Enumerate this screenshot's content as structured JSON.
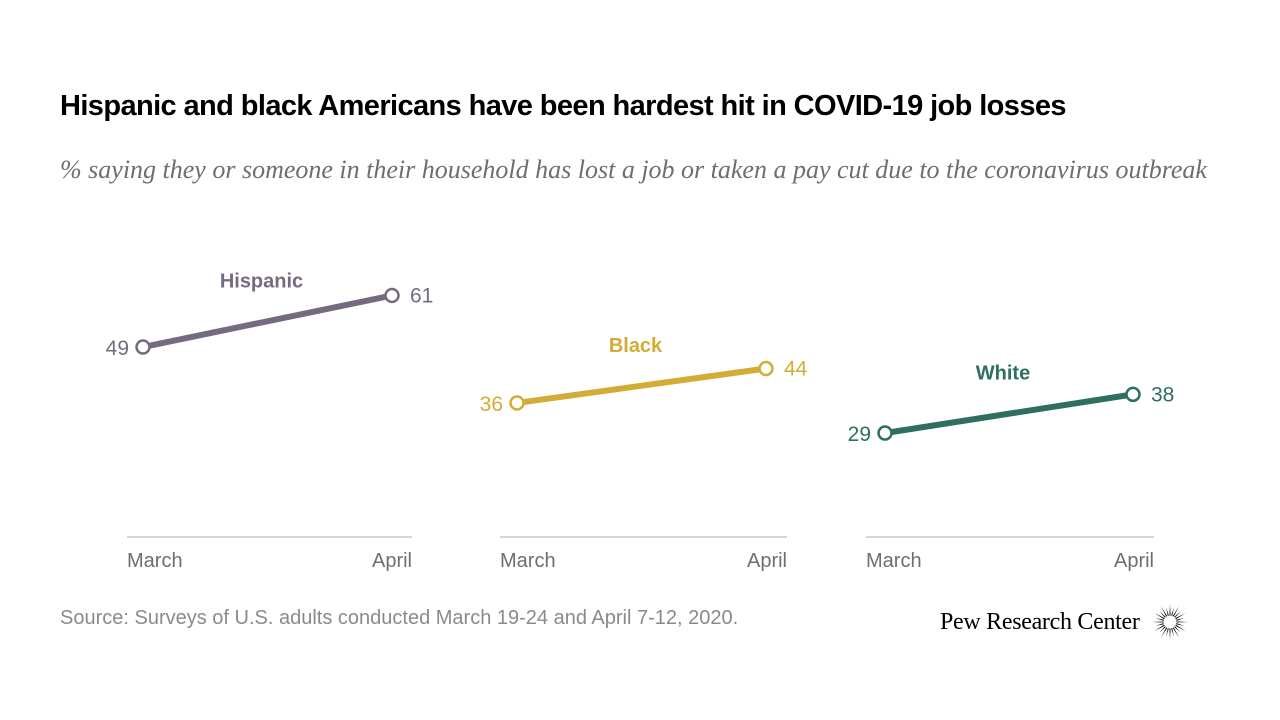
{
  "title": "Hispanic and black Americans have been hardest hit in COVID-19 job losses",
  "subtitle": "% saying they or someone in their household has lost a job or taken a pay cut due to the coronavirus outbreak",
  "source": "Source: Surveys of U.S. adults conducted March 19-24 and April 7-12, 2020.",
  "brand": {
    "name": "Pew Research Center",
    "logo_icon": "pew-sunburst-icon"
  },
  "colors": {
    "hispanic": "#756b80",
    "black": "#d2ad35",
    "white": "#2e6f60",
    "axis": "#c8c8c8",
    "tick_text": "#6e6e6e"
  },
  "chart_data": {
    "type": "line",
    "categories": [
      "March",
      "April"
    ],
    "ylim": [
      0,
      70
    ],
    "grid": false,
    "series": [
      {
        "name": "Hispanic",
        "values": [
          49,
          61
        ],
        "color": "#756b80"
      },
      {
        "name": "Black",
        "values": [
          36,
          44
        ],
        "color": "#d2ad35"
      },
      {
        "name": "White",
        "values": [
          29,
          38
        ],
        "color": "#2e6f60"
      }
    ]
  }
}
